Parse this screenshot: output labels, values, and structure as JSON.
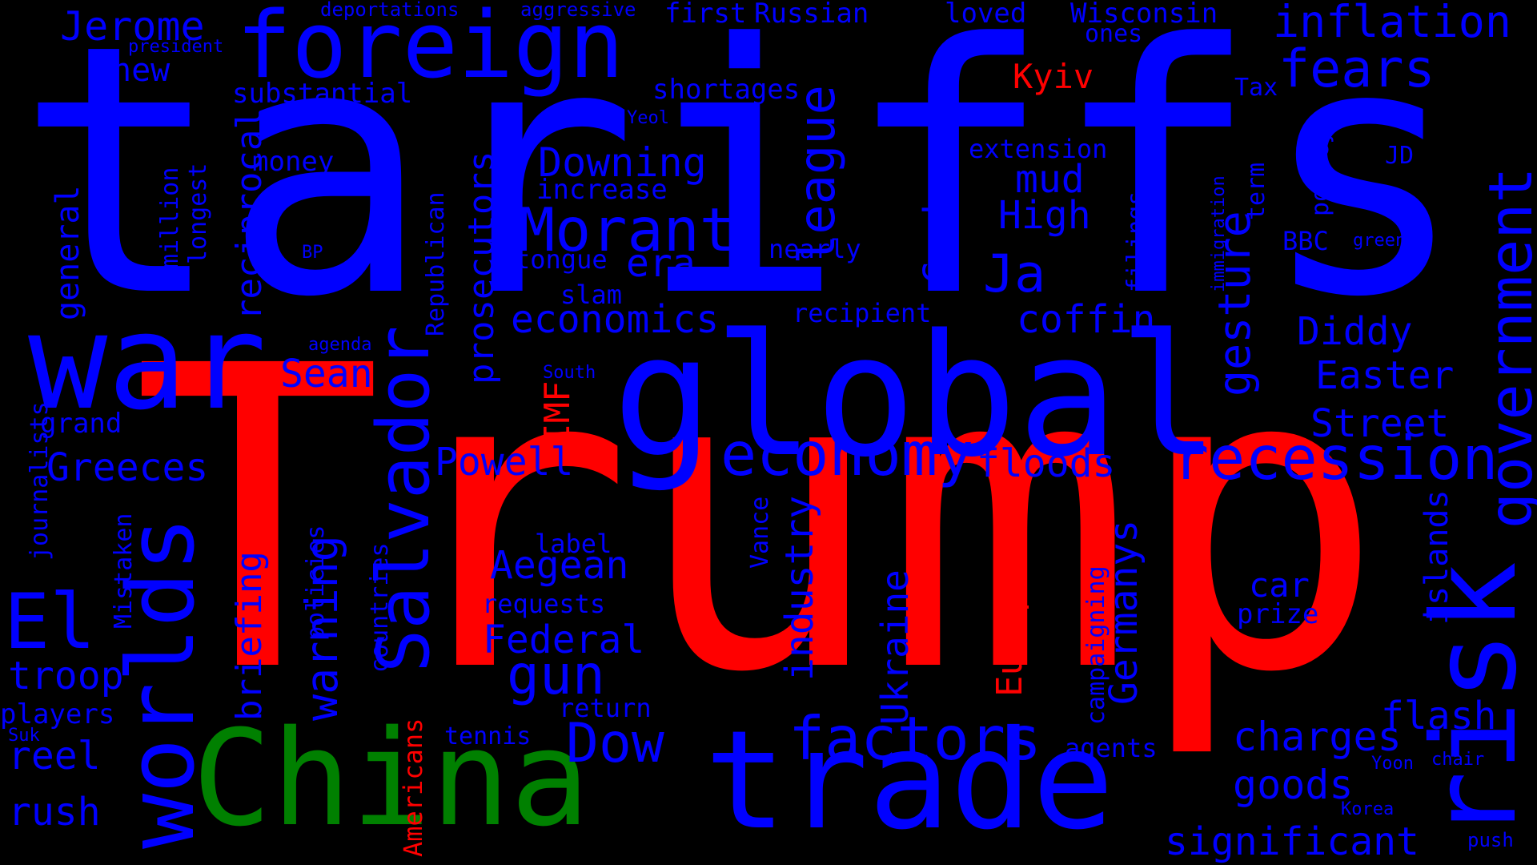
{
  "colors": {
    "background": "#000000",
    "blue": "#0000ff",
    "red": "#ff0000",
    "green": "#008000"
  },
  "words": [
    {
      "text": "tariffs",
      "color": "blue"
    },
    {
      "text": "Trump",
      "color": "red"
    },
    {
      "text": "global",
      "color": "blue"
    },
    {
      "text": "China",
      "color": "green"
    },
    {
      "text": "trade",
      "color": "blue"
    },
    {
      "text": "war",
      "color": "blue"
    },
    {
      "text": "foreign",
      "color": "blue"
    },
    {
      "text": "risk",
      "color": "blue"
    },
    {
      "text": "worlds",
      "color": "blue"
    },
    {
      "text": "government",
      "color": "blue"
    },
    {
      "text": "Salvador",
      "color": "blue"
    },
    {
      "text": "recession",
      "color": "blue"
    },
    {
      "text": "economy",
      "color": "blue"
    },
    {
      "text": "factors",
      "color": "blue"
    },
    {
      "text": "league",
      "color": "blue"
    },
    {
      "text": "gesture",
      "color": "blue"
    },
    {
      "text": "Morant",
      "color": "blue"
    },
    {
      "text": "El",
      "color": "blue"
    },
    {
      "text": "inflation",
      "color": "blue"
    },
    {
      "text": "fears",
      "color": "blue"
    },
    {
      "text": "Jerome",
      "color": "blue"
    },
    {
      "text": "Ja",
      "color": "blue"
    },
    {
      "text": "Downing",
      "color": "blue"
    },
    {
      "text": "warning",
      "color": "blue"
    },
    {
      "text": "gun",
      "color": "blue"
    },
    {
      "text": "Dow",
      "color": "blue"
    },
    {
      "text": "charges",
      "color": "blue"
    },
    {
      "text": "significant",
      "color": "blue"
    },
    {
      "text": "goods",
      "color": "blue"
    },
    {
      "text": "flash",
      "color": "blue"
    },
    {
      "text": "Germanys",
      "color": "blue"
    },
    {
      "text": "Ukraine",
      "color": "blue"
    },
    {
      "text": "industry",
      "color": "blue"
    },
    {
      "text": "Federal",
      "color": "blue"
    },
    {
      "text": "Aegean",
      "color": "blue"
    },
    {
      "text": "Powell",
      "color": "blue"
    },
    {
      "text": "Greeces",
      "color": "blue"
    },
    {
      "text": "troop",
      "color": "blue"
    },
    {
      "text": "rush",
      "color": "blue"
    },
    {
      "text": "reel",
      "color": "blue"
    },
    {
      "text": "economics",
      "color": "blue"
    },
    {
      "text": "coffin",
      "color": "blue"
    },
    {
      "text": "floods",
      "color": "blue"
    },
    {
      "text": "Street",
      "color": "blue"
    },
    {
      "text": "Easter",
      "color": "blue"
    },
    {
      "text": "Diddy",
      "color": "blue"
    },
    {
      "text": "Sean",
      "color": "blue"
    },
    {
      "text": "High",
      "color": "blue"
    },
    {
      "text": "mud",
      "color": "blue"
    },
    {
      "text": "era",
      "color": "blue"
    },
    {
      "text": "Combs",
      "color": "blue"
    },
    {
      "text": "prosecutors",
      "color": "blue"
    },
    {
      "text": "reciprocal",
      "color": "blue"
    },
    {
      "text": "general",
      "color": "blue"
    },
    {
      "text": "briefing",
      "color": "blue"
    },
    {
      "text": "islands",
      "color": "blue"
    },
    {
      "text": "car",
      "color": "blue"
    },
    {
      "text": "prize",
      "color": "blue"
    },
    {
      "text": "new",
      "color": "blue"
    },
    {
      "text": "substantial",
      "color": "blue"
    },
    {
      "text": "shortages",
      "color": "blue"
    },
    {
      "text": "first",
      "color": "blue"
    },
    {
      "text": "Russian",
      "color": "blue"
    },
    {
      "text": "loved",
      "color": "blue"
    },
    {
      "text": "Wisconsin",
      "color": "blue"
    },
    {
      "text": "ones",
      "color": "blue"
    },
    {
      "text": "Tax",
      "color": "blue"
    },
    {
      "text": "money",
      "color": "blue"
    },
    {
      "text": "increase",
      "color": "blue"
    },
    {
      "text": "extension",
      "color": "blue"
    },
    {
      "text": "JD",
      "color": "blue"
    },
    {
      "text": "BBC",
      "color": "blue"
    },
    {
      "text": "tongue",
      "color": "blue"
    },
    {
      "text": "nearly",
      "color": "blue"
    },
    {
      "text": "slam",
      "color": "blue"
    },
    {
      "text": "recipient",
      "color": "blue"
    },
    {
      "text": "grand",
      "color": "blue"
    },
    {
      "text": "players",
      "color": "blue"
    },
    {
      "text": "tennis",
      "color": "blue"
    },
    {
      "text": "return",
      "color": "blue"
    },
    {
      "text": "requests",
      "color": "blue"
    },
    {
      "text": "label",
      "color": "blue"
    },
    {
      "text": "agents",
      "color": "blue"
    },
    {
      "text": "campaigning",
      "color": "blue"
    },
    {
      "text": "Vance",
      "color": "blue"
    },
    {
      "text": "countries",
      "color": "blue"
    },
    {
      "text": "policies",
      "color": "blue"
    },
    {
      "text": "Mistaken",
      "color": "blue"
    },
    {
      "text": "journalists",
      "color": "blue"
    },
    {
      "text": "Republican",
      "color": "blue"
    },
    {
      "text": "filings",
      "color": "blue"
    },
    {
      "text": "term",
      "color": "blue"
    },
    {
      "text": "policy",
      "color": "blue"
    },
    {
      "text": "million",
      "color": "blue"
    },
    {
      "text": "longest",
      "color": "blue"
    },
    {
      "text": "push",
      "color": "blue"
    },
    {
      "text": "deportations",
      "color": "blue"
    },
    {
      "text": "aggressive",
      "color": "blue"
    },
    {
      "text": "president",
      "color": "blue"
    },
    {
      "text": "Yeol",
      "color": "blue"
    },
    {
      "text": "BP",
      "color": "blue"
    },
    {
      "text": "agenda",
      "color": "blue"
    },
    {
      "text": "South",
      "color": "blue"
    },
    {
      "text": "Suk",
      "color": "blue"
    },
    {
      "text": "green",
      "color": "blue"
    },
    {
      "text": "immigration",
      "color": "blue"
    },
    {
      "text": "Yoon",
      "color": "blue"
    },
    {
      "text": "chair",
      "color": "blue"
    },
    {
      "text": "Korea",
      "color": "blue"
    },
    {
      "text": "Kyiv",
      "color": "red"
    },
    {
      "text": "IMF",
      "color": "red"
    },
    {
      "text": "Europe",
      "color": "red"
    },
    {
      "text": "Americans",
      "color": "red"
    }
  ]
}
